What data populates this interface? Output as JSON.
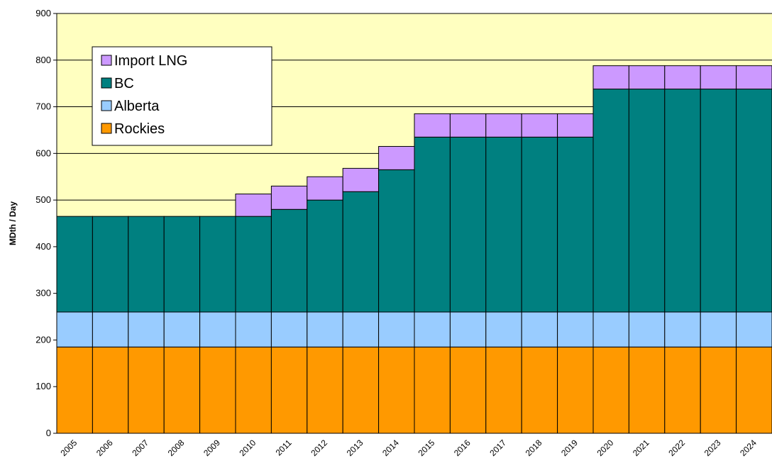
{
  "chart_data": {
    "type": "stacked_bar",
    "y_label": "MDth / Day",
    "categories": [
      "2005",
      "2006",
      "2007",
      "2008",
      "2009",
      "2010",
      "2011",
      "2012",
      "2013",
      "2014",
      "2015",
      "2016",
      "2017",
      "2018",
      "2019",
      "2020",
      "2021",
      "2022",
      "2023",
      "2024"
    ],
    "series": [
      {
        "name": "Rockies",
        "color": "#ff9900",
        "values": [
          185,
          185,
          185,
          185,
          185,
          185,
          185,
          185,
          185,
          185,
          185,
          185,
          185,
          185,
          185,
          185,
          185,
          185,
          185,
          185
        ]
      },
      {
        "name": "Alberta",
        "color": "#99ccff",
        "values": [
          75,
          75,
          75,
          75,
          75,
          75,
          75,
          75,
          75,
          75,
          75,
          75,
          75,
          75,
          75,
          75,
          75,
          75,
          75,
          75
        ]
      },
      {
        "name": "BC",
        "color": "#008080",
        "values": [
          205,
          205,
          205,
          205,
          205,
          205,
          220,
          240,
          258,
          305,
          375,
          375,
          375,
          375,
          375,
          478,
          478,
          478,
          478,
          478
        ]
      },
      {
        "name": "Import LNG",
        "color": "#cc99ff",
        "values": [
          0,
          0,
          0,
          0,
          0,
          48,
          50,
          50,
          50,
          50,
          50,
          50,
          50,
          50,
          50,
          50,
          50,
          50,
          50,
          50
        ]
      }
    ],
    "ylim": [
      0,
      900
    ],
    "yticks": [
      0,
      100,
      200,
      300,
      400,
      500,
      600,
      700,
      800,
      900
    ],
    "grid": true
  }
}
